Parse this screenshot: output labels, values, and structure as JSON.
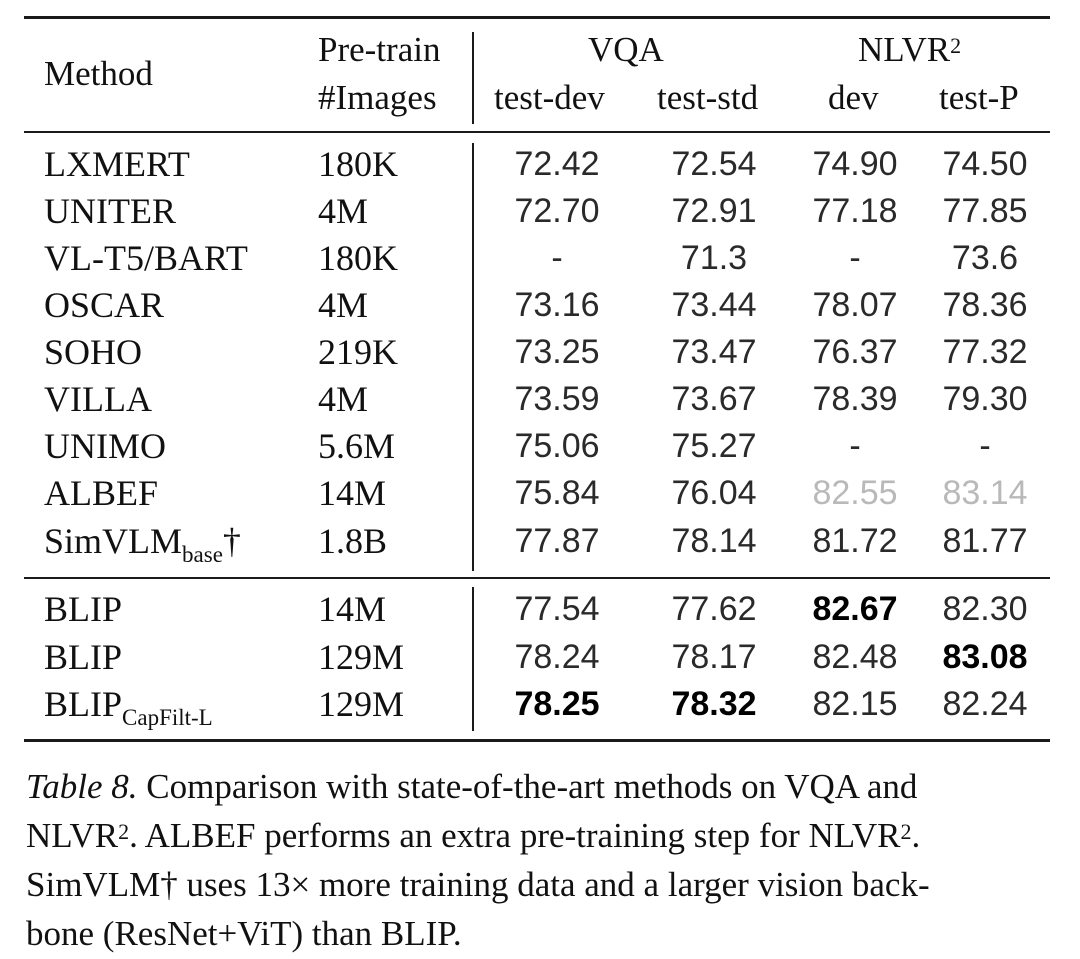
{
  "table": {
    "header": {
      "method": "Method",
      "pretrain_line1": "Pre-train",
      "pretrain_line2": "#Images",
      "vqa": "VQA",
      "nlvr": "NLVR",
      "nlvr_sup": "2",
      "vqa_test_dev": "test-dev",
      "vqa_test_std": "test-std",
      "nlvr_dev": "dev",
      "nlvr_test_p": "test-P"
    },
    "rows": [
      {
        "method": "LXMERT",
        "images": "180K",
        "test_dev": "72.42",
        "test_std": "72.54",
        "dev": "74.90",
        "test_p": "74.50"
      },
      {
        "method": "UNITER",
        "images": "4M",
        "test_dev": "72.70",
        "test_std": "72.91",
        "dev": "77.18",
        "test_p": "77.85"
      },
      {
        "method": "VL-T5/BART",
        "images": "180K",
        "test_dev": "-",
        "test_std": "71.3",
        "dev": "-",
        "test_p": "73.6"
      },
      {
        "method": "OSCAR",
        "images": "4M",
        "test_dev": "73.16",
        "test_std": "73.44",
        "dev": "78.07",
        "test_p": "78.36"
      },
      {
        "method": "SOHO",
        "images": "219K",
        "test_dev": "73.25",
        "test_std": "73.47",
        "dev": "76.37",
        "test_p": "77.32"
      },
      {
        "method": "VILLA",
        "images": "4M",
        "test_dev": "73.59",
        "test_std": "73.67",
        "dev": "78.39",
        "test_p": "79.30"
      },
      {
        "method": "UNIMO",
        "images": "5.6M",
        "test_dev": "75.06",
        "test_std": "75.27",
        "dev": "-",
        "test_p": "-"
      },
      {
        "method": "ALBEF",
        "images": "14M",
        "test_dev": "75.84",
        "test_std": "76.04",
        "dev": "82.55",
        "test_p": "83.14"
      },
      {
        "method": "SimVLM",
        "method_sub": "base",
        "method_suffix": "†",
        "images": "1.8B",
        "test_dev": "77.87",
        "test_std": "78.14",
        "dev": "81.72",
        "test_p": "81.77"
      }
    ],
    "blip_rows": [
      {
        "method": "BLIP",
        "images": "14M",
        "test_dev": "77.54",
        "test_std": "77.62",
        "dev": "82.67",
        "test_p": "82.30"
      },
      {
        "method": "BLIP",
        "images": "129M",
        "test_dev": "78.24",
        "test_std": "78.17",
        "dev": "82.48",
        "test_p": "83.08"
      },
      {
        "method": "BLIP",
        "method_sub": "CapFilt-L",
        "images": "129M",
        "test_dev": "78.25",
        "test_std": "78.32",
        "dev": "82.15",
        "test_p": "82.24"
      }
    ]
  },
  "caption": {
    "label": "Table 8.",
    "line1_rest": " Comparison with state-of-the-art methods on VQA and",
    "line2_a": "NLVR",
    "line2_sup": "2",
    "line2_b": ". ALBEF performs an extra pre-training step for NLVR",
    "line2_sup2": "2",
    "line2_c": ".",
    "line3": "SimVLM† uses 13× more training data and a larger vision back-",
    "line4": "bone (ResNet+ViT) than BLIP."
  },
  "colors": {
    "text": "#111111",
    "greyed": "#b9b9b9",
    "rule": "#1a1a1a"
  }
}
